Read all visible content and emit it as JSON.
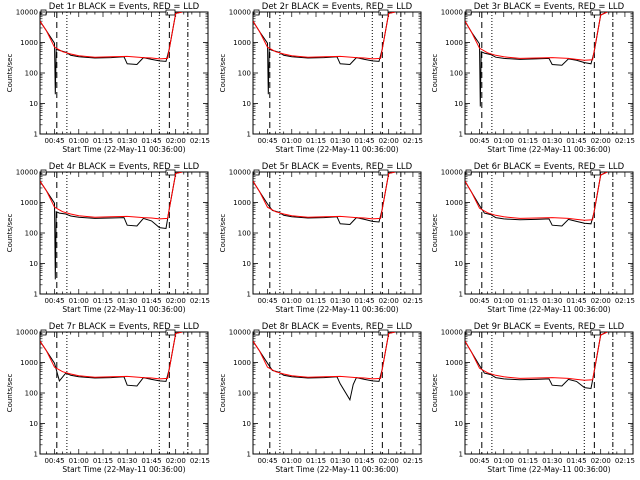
{
  "chart_data": [
    {
      "type": "line",
      "title": "Det 1r BLACK = Events, RED = LLD",
      "xlabel": "Start Time (22-May-11 00:36:00)",
      "ylabel": "Counts/sec",
      "yscale": "log",
      "ylim": [
        1,
        10000
      ],
      "xlim": [
        "00:36",
        "02:20"
      ],
      "xticks": [
        "00:45",
        "01:00",
        "01:15",
        "01:30",
        "01:45",
        "02:00",
        "02:15"
      ],
      "yticks": [
        "1",
        "10",
        "100",
        "1000",
        "10000"
      ],
      "series": [
        {
          "color": "#000000",
          "x": [
            "00:36",
            "00:40",
            "00:45",
            "00:45:30",
            "00:46",
            "00:48",
            "00:52",
            "00:55",
            "01:00",
            "01:10",
            "01:20",
            "01:28",
            "01:30",
            "01:36",
            "01:40",
            "01:45",
            "01:50",
            "01:54",
            "01:56",
            "02:00",
            "02:04"
          ],
          "y": [
            5000,
            2400,
            950,
            20,
            600,
            550,
            480,
            380,
            340,
            310,
            320,
            340,
            200,
            190,
            320,
            280,
            250,
            240,
            600,
            9000,
            10000
          ]
        },
        {
          "color": "#ff0000",
          "x": [
            "00:36",
            "00:40",
            "00:45",
            "00:50",
            "00:55",
            "01:00",
            "01:10",
            "01:20",
            "01:30",
            "01:40",
            "01:45",
            "01:50",
            "01:55",
            "02:00",
            "02:04"
          ],
          "y": [
            5000,
            2400,
            700,
            500,
            420,
            370,
            330,
            340,
            350,
            320,
            310,
            290,
            300,
            9000,
            10000
          ]
        }
      ]
    },
    {
      "type": "line",
      "title": "Det 2r BLACK = Events, RED = LLD",
      "xlabel": "Start Time (22-May-11 00:36:00)",
      "ylabel": "Counts/sec",
      "yscale": "log",
      "ylim": [
        1,
        10000
      ],
      "xlim": [
        "00:36",
        "02:20"
      ],
      "xticks": [
        "00:45",
        "01:00",
        "01:15",
        "01:30",
        "01:45",
        "02:00",
        "02:15"
      ],
      "yticks": [
        "1",
        "10",
        "100",
        "1000",
        "10000"
      ],
      "series": [
        {
          "color": "#000000",
          "x": [
            "00:36",
            "00:40",
            "00:45",
            "00:45:30",
            "00:46",
            "00:48",
            "00:52",
            "00:55",
            "01:00",
            "01:10",
            "01:20",
            "01:28",
            "01:30",
            "01:36",
            "01:40",
            "01:45",
            "01:50",
            "01:54",
            "01:56",
            "02:00",
            "02:04"
          ],
          "y": [
            5000,
            2300,
            950,
            20,
            600,
            550,
            480,
            380,
            340,
            310,
            320,
            340,
            200,
            190,
            320,
            280,
            250,
            240,
            600,
            9000,
            10000
          ]
        },
        {
          "color": "#ff0000",
          "x": [
            "00:36",
            "00:40",
            "00:45",
            "00:50",
            "00:55",
            "01:00",
            "01:10",
            "01:20",
            "01:30",
            "01:40",
            "01:45",
            "01:50",
            "01:55",
            "02:00",
            "02:04"
          ],
          "y": [
            5000,
            2300,
            700,
            500,
            420,
            370,
            330,
            340,
            350,
            320,
            310,
            290,
            300,
            9000,
            10000
          ]
        }
      ]
    },
    {
      "type": "line",
      "title": "Det 3r BLACK = Events, RED = LLD",
      "xlabel": "Start Time (22-May-11 00:36:00)",
      "ylabel": "Counts/sec",
      "yscale": "log",
      "ylim": [
        1,
        10000
      ],
      "xlim": [
        "00:36",
        "02:20"
      ],
      "xticks": [
        "00:45",
        "01:00",
        "01:15",
        "01:30",
        "01:45",
        "02:00",
        "02:15"
      ],
      "yticks": [
        "1",
        "10",
        "100",
        "1000",
        "10000"
      ],
      "series": [
        {
          "color": "#000000",
          "x": [
            "00:36",
            "00:40",
            "00:45",
            "00:45:30",
            "00:46",
            "00:48",
            "00:52",
            "00:55",
            "01:00",
            "01:10",
            "01:20",
            "01:28",
            "01:30",
            "01:36",
            "01:40",
            "01:45",
            "01:50",
            "01:54",
            "01:56",
            "02:00",
            "02:04"
          ],
          "y": [
            5000,
            2200,
            900,
            8,
            500,
            450,
            400,
            330,
            300,
            280,
            290,
            300,
            190,
            180,
            290,
            260,
            220,
            200,
            500,
            8000,
            10000
          ]
        },
        {
          "color": "#ff0000",
          "x": [
            "00:36",
            "00:40",
            "00:45",
            "00:50",
            "00:55",
            "01:00",
            "01:10",
            "01:20",
            "01:30",
            "01:40",
            "01:45",
            "01:50",
            "01:55",
            "02:00",
            "02:04"
          ],
          "y": [
            5000,
            2200,
            650,
            460,
            380,
            340,
            300,
            310,
            320,
            300,
            280,
            260,
            270,
            8000,
            10000
          ]
        }
      ]
    },
    {
      "type": "line",
      "title": "Det 4r BLACK = Events, RED = LLD",
      "xlabel": "Start Time (22-May-11 00:36:00)",
      "ylabel": "Counts/sec",
      "yscale": "log",
      "ylim": [
        1,
        10000
      ],
      "xlim": [
        "00:36",
        "02:20"
      ],
      "xticks": [
        "00:45",
        "01:00",
        "01:15",
        "01:30",
        "01:45",
        "02:00",
        "02:15"
      ],
      "yticks": [
        "1",
        "10",
        "100",
        "1000",
        "10000"
      ],
      "series": [
        {
          "color": "#000000",
          "x": [
            "00:36",
            "00:40",
            "00:45",
            "00:45:30",
            "00:46",
            "00:48",
            "00:52",
            "00:55",
            "01:00",
            "01:10",
            "01:20",
            "01:28",
            "01:30",
            "01:36",
            "01:40",
            "01:45",
            "01:50",
            "01:54",
            "01:56",
            "02:00",
            "02:04"
          ],
          "y": [
            5000,
            2400,
            950,
            3,
            500,
            450,
            420,
            360,
            330,
            300,
            310,
            320,
            180,
            170,
            300,
            250,
            150,
            140,
            600,
            9000,
            10000
          ]
        },
        {
          "color": "#ff0000",
          "x": [
            "00:36",
            "00:40",
            "00:45",
            "00:50",
            "00:55",
            "01:00",
            "01:10",
            "01:20",
            "01:30",
            "01:40",
            "01:45",
            "01:50",
            "01:55",
            "02:00",
            "02:04"
          ],
          "y": [
            5000,
            2400,
            700,
            500,
            420,
            370,
            330,
            340,
            350,
            320,
            310,
            290,
            300,
            9000,
            10000
          ]
        }
      ]
    },
    {
      "type": "line",
      "title": "Det 5r BLACK = Events, RED = LLD",
      "xlabel": "Start Time (22-May-11 00:36:00)",
      "ylabel": "Counts/sec",
      "yscale": "log",
      "ylim": [
        1,
        10000
      ],
      "xlim": [
        "00:36",
        "02:20"
      ],
      "xticks": [
        "00:45",
        "01:00",
        "01:15",
        "01:30",
        "01:45",
        "02:00",
        "02:15"
      ],
      "yticks": [
        "1",
        "10",
        "100",
        "1000",
        "10000"
      ],
      "series": [
        {
          "color": "#000000",
          "x": [
            "00:36",
            "00:40",
            "00:45",
            "00:48",
            "00:52",
            "00:55",
            "01:00",
            "01:10",
            "01:20",
            "01:28",
            "01:30",
            "01:36",
            "01:40",
            "01:45",
            "01:50",
            "01:54",
            "01:56",
            "02:00",
            "02:04"
          ],
          "y": [
            5000,
            2300,
            900,
            550,
            480,
            380,
            340,
            310,
            320,
            340,
            200,
            190,
            320,
            280,
            240,
            230,
            600,
            9000,
            10000
          ]
        },
        {
          "color": "#ff0000",
          "x": [
            "00:36",
            "00:40",
            "00:45",
            "00:50",
            "00:55",
            "01:00",
            "01:10",
            "01:20",
            "01:30",
            "01:40",
            "01:45",
            "01:50",
            "01:55",
            "02:00",
            "02:04"
          ],
          "y": [
            5000,
            2300,
            700,
            500,
            420,
            370,
            330,
            340,
            350,
            320,
            310,
            290,
            300,
            9000,
            10000
          ]
        }
      ]
    },
    {
      "type": "line",
      "title": "Det 6r BLACK = Events, RED = LLD",
      "xlabel": "Start Time (22-May-11 00:36:00)",
      "ylabel": "Counts/sec",
      "yscale": "log",
      "ylim": [
        1,
        10000
      ],
      "xlim": [
        "00:36",
        "02:20"
      ],
      "xticks": [
        "00:45",
        "01:00",
        "01:15",
        "01:30",
        "01:45",
        "02:00",
        "02:15"
      ],
      "yticks": [
        "1",
        "10",
        "100",
        "1000",
        "10000"
      ],
      "series": [
        {
          "color": "#000000",
          "x": [
            "00:36",
            "00:40",
            "00:45",
            "00:48",
            "00:52",
            "00:55",
            "01:00",
            "01:10",
            "01:20",
            "01:28",
            "01:30",
            "01:36",
            "01:40",
            "01:45",
            "01:50",
            "01:54",
            "01:56",
            "02:00",
            "02:04"
          ],
          "y": [
            5000,
            2200,
            800,
            450,
            400,
            320,
            290,
            270,
            280,
            290,
            180,
            170,
            280,
            240,
            210,
            200,
            500,
            8000,
            10000
          ]
        },
        {
          "color": "#ff0000",
          "x": [
            "00:36",
            "00:40",
            "00:45",
            "00:50",
            "00:55",
            "01:00",
            "01:10",
            "01:20",
            "01:30",
            "01:40",
            "01:45",
            "01:50",
            "01:55",
            "02:00",
            "02:04"
          ],
          "y": [
            5000,
            2200,
            650,
            460,
            380,
            340,
            300,
            310,
            320,
            300,
            280,
            260,
            270,
            8000,
            10000
          ]
        }
      ]
    },
    {
      "type": "line",
      "title": "Det 7r BLACK = Events, RED = LLD",
      "xlabel": "Start Time (22-May-11 00:36:00)",
      "ylabel": "Counts/sec",
      "yscale": "log",
      "ylim": [
        1,
        10000
      ],
      "xlim": [
        "00:36",
        "02:20"
      ],
      "xticks": [
        "00:45",
        "01:00",
        "01:15",
        "01:30",
        "01:45",
        "02:00",
        "02:15"
      ],
      "yticks": [
        "1",
        "10",
        "100",
        "1000",
        "10000"
      ],
      "series": [
        {
          "color": "#000000",
          "x": [
            "00:36",
            "00:40",
            "00:45",
            "00:48",
            "00:52",
            "00:55",
            "01:00",
            "01:10",
            "01:20",
            "01:28",
            "01:30",
            "01:36",
            "01:40",
            "01:45",
            "01:50",
            "01:54",
            "01:56",
            "02:00",
            "02:04"
          ],
          "y": [
            5000,
            2400,
            950,
            250,
            450,
            380,
            340,
            310,
            320,
            340,
            180,
            170,
            320,
            280,
            250,
            240,
            600,
            9000,
            10000
          ]
        },
        {
          "color": "#ff0000",
          "x": [
            "00:36",
            "00:40",
            "00:45",
            "00:50",
            "00:55",
            "01:00",
            "01:10",
            "01:20",
            "01:30",
            "01:40",
            "01:45",
            "01:50",
            "01:55",
            "02:00",
            "02:04"
          ],
          "y": [
            5000,
            2400,
            700,
            500,
            420,
            370,
            330,
            340,
            350,
            320,
            310,
            290,
            300,
            9000,
            10000
          ]
        }
      ]
    },
    {
      "type": "line",
      "title": "Det 8r BLACK = Events, RED = LLD",
      "xlabel": "Start Time (22-May-11 00:36:00)",
      "ylabel": "Counts/sec",
      "yscale": "log",
      "ylim": [
        1,
        10000
      ],
      "xlim": [
        "00:36",
        "02:20"
      ],
      "xticks": [
        "00:45",
        "01:00",
        "01:15",
        "01:30",
        "01:45",
        "02:00",
        "02:15"
      ],
      "yticks": [
        "1",
        "10",
        "100",
        "1000",
        "10000"
      ],
      "series": [
        {
          "color": "#000000",
          "x": [
            "00:36",
            "00:40",
            "00:45",
            "00:48",
            "00:52",
            "00:55",
            "01:00",
            "01:10",
            "01:20",
            "01:28",
            "01:30",
            "01:36",
            "01:38",
            "01:40",
            "01:45",
            "01:50",
            "01:54",
            "01:56",
            "02:00",
            "02:04"
          ],
          "y": [
            5000,
            2400,
            950,
            550,
            480,
            380,
            340,
            310,
            320,
            340,
            200,
            60,
            190,
            320,
            280,
            250,
            240,
            600,
            9000,
            10000
          ]
        },
        {
          "color": "#ff0000",
          "x": [
            "00:36",
            "00:40",
            "00:45",
            "00:50",
            "00:55",
            "01:00",
            "01:10",
            "01:20",
            "01:30",
            "01:40",
            "01:45",
            "01:50",
            "01:55",
            "02:00",
            "02:04"
          ],
          "y": [
            5000,
            2400,
            700,
            500,
            420,
            370,
            330,
            340,
            350,
            320,
            310,
            290,
            300,
            9000,
            10000
          ]
        }
      ]
    },
    {
      "type": "line",
      "title": "Det 9r BLACK = Events, RED = LLD",
      "xlabel": "Start Time (22-May-11 00:36:00)",
      "ylabel": "Counts/sec",
      "yscale": "log",
      "ylim": [
        1,
        10000
      ],
      "xlim": [
        "00:36",
        "02:20"
      ],
      "xticks": [
        "00:45",
        "01:00",
        "01:15",
        "01:30",
        "01:45",
        "02:00",
        "02:15"
      ],
      "yticks": [
        "1",
        "10",
        "100",
        "1000",
        "10000"
      ],
      "series": [
        {
          "color": "#000000",
          "x": [
            "00:36",
            "00:40",
            "00:45",
            "00:48",
            "00:52",
            "00:55",
            "01:00",
            "01:10",
            "01:20",
            "01:28",
            "01:30",
            "01:36",
            "01:40",
            "01:45",
            "01:50",
            "01:54",
            "01:56",
            "02:00",
            "02:04"
          ],
          "y": [
            5000,
            2200,
            800,
            450,
            400,
            320,
            290,
            270,
            280,
            290,
            180,
            170,
            280,
            240,
            150,
            140,
            500,
            8000,
            10000
          ]
        },
        {
          "color": "#ff0000",
          "x": [
            "00:36",
            "00:40",
            "00:45",
            "00:50",
            "00:55",
            "01:00",
            "01:10",
            "01:20",
            "01:30",
            "01:40",
            "01:45",
            "01:50",
            "01:55",
            "02:00",
            "02:04"
          ],
          "y": [
            5000,
            2200,
            650,
            460,
            380,
            340,
            300,
            310,
            320,
            300,
            280,
            260,
            270,
            8000,
            10000
          ]
        }
      ]
    }
  ]
}
